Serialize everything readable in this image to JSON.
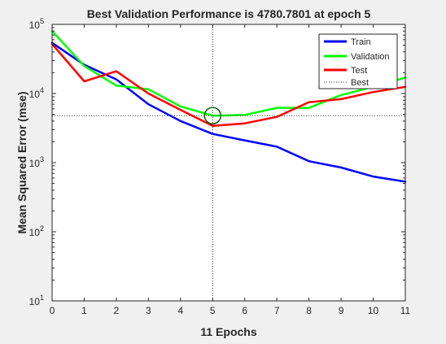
{
  "chart_data": {
    "type": "line",
    "title": "Best Validation Performance is 4780.7801 at epoch 5",
    "xlabel": "11 Epochs",
    "ylabel": "Mean Squared Error  (mse)",
    "xlim": [
      0,
      11
    ],
    "ylim": [
      10,
      100000
    ],
    "yscale": "log",
    "x_ticks": [
      "0",
      "1",
      "2",
      "3",
      "4",
      "5",
      "6",
      "7",
      "8",
      "9",
      "10",
      "11"
    ],
    "y_ticks": [
      {
        "value": 10,
        "base": "10",
        "exp": "1"
      },
      {
        "value": 100,
        "base": "10",
        "exp": "2"
      },
      {
        "value": 1000,
        "base": "10",
        "exp": "3"
      },
      {
        "value": 10000,
        "base": "10",
        "exp": "4"
      },
      {
        "value": 100000,
        "base": "10",
        "exp": "5"
      }
    ],
    "x": [
      0,
      1,
      2,
      3,
      4,
      5,
      6,
      7,
      8,
      9,
      10,
      11
    ],
    "series": [
      {
        "name": "Train",
        "color": "#0000ff",
        "values": [
          54000,
          26000,
          16000,
          7000,
          4000,
          2600,
          2100,
          1700,
          1050,
          850,
          630,
          530
        ]
      },
      {
        "name": "Validation",
        "color": "#00ff00",
        "values": [
          80000,
          25000,
          13000,
          11500,
          6500,
          4780.7801,
          4900,
          6200,
          6200,
          9500,
          12500,
          17000
        ]
      },
      {
        "name": "Test",
        "color": "#ff0000",
        "values": [
          52000,
          15000,
          21000,
          10000,
          5800,
          3400,
          3700,
          4600,
          7500,
          8300,
          10500,
          12500
        ]
      }
    ],
    "best": {
      "name": "Best",
      "epoch": 5,
      "value": 4780.7801,
      "marker_color": "#006400",
      "line_color": "#333333"
    },
    "grid": false,
    "legend_position": "top-right"
  }
}
